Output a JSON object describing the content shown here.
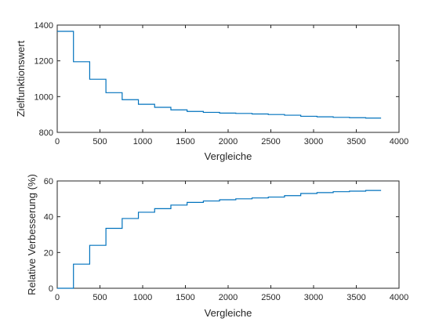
{
  "chart_data": [
    {
      "type": "line",
      "step": "post",
      "xlabel": "Vergleiche",
      "ylabel": "Zielfunktionswert",
      "xlim": [
        0,
        4000
      ],
      "ylim": [
        800,
        1400
      ],
      "xticks": [
        0,
        500,
        1000,
        1500,
        2000,
        2500,
        3000,
        3500,
        4000
      ],
      "yticks": [
        800,
        1000,
        1200,
        1400
      ],
      "grid": false,
      "color": "#0072BD",
      "series": [
        {
          "x": [
            0,
            190,
            380,
            570,
            760,
            950,
            1140,
            1330,
            1520,
            1710,
            1900,
            2090,
            2280,
            2470,
            2660,
            2850,
            3040,
            3230,
            3420,
            3610,
            3790
          ],
          "values": [
            1365,
            1195,
            1097,
            1022,
            983,
            957,
            940,
            926,
            917,
            912,
            908,
            906,
            903,
            900,
            896,
            890,
            887,
            884,
            882,
            880,
            880
          ]
        }
      ]
    },
    {
      "type": "line",
      "step": "post",
      "xlabel": "Vergleiche",
      "ylabel": "Relative Verbesserung (%)",
      "xlim": [
        0,
        4000
      ],
      "ylim": [
        0,
        60
      ],
      "xticks": [
        0,
        500,
        1000,
        1500,
        2000,
        2500,
        3000,
        3500,
        4000
      ],
      "yticks": [
        0,
        20,
        40,
        60
      ],
      "grid": false,
      "color": "#0072BD",
      "series": [
        {
          "x": [
            0,
            190,
            380,
            570,
            760,
            950,
            1140,
            1330,
            1520,
            1710,
            1900,
            2090,
            2280,
            2470,
            2660,
            2850,
            3040,
            3230,
            3420,
            3610,
            3790
          ],
          "values": [
            0,
            13.5,
            24,
            33.5,
            39,
            42.5,
            44.5,
            46.5,
            48,
            48.8,
            49.5,
            50,
            50.5,
            51,
            51.8,
            53,
            53.5,
            54,
            54.3,
            54.7,
            54.7
          ]
        }
      ]
    }
  ]
}
